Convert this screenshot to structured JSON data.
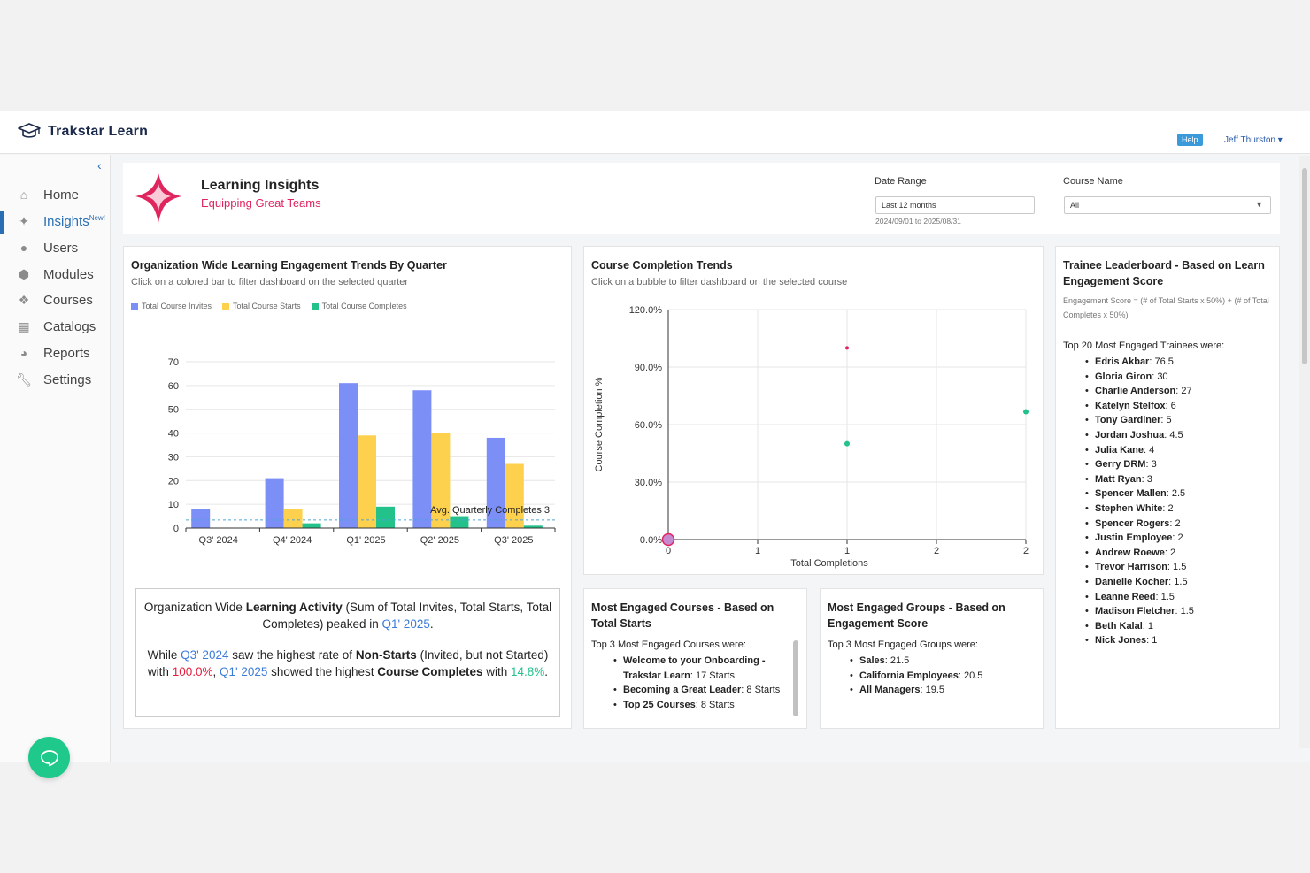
{
  "app": {
    "brand": "Trakstar Learn",
    "help": "Help",
    "user": "Jeff Thurston"
  },
  "nav": [
    {
      "label": "Home",
      "icon": "home-icon"
    },
    {
      "label": "Insights",
      "icon": "insights-icon",
      "badge": "New!",
      "active": true
    },
    {
      "label": "Users",
      "icon": "user-icon"
    },
    {
      "label": "Modules",
      "icon": "cube-icon"
    },
    {
      "label": "Courses",
      "icon": "courses-icon"
    },
    {
      "label": "Catalogs",
      "icon": "grid-icon"
    },
    {
      "label": "Reports",
      "icon": "pie-icon"
    },
    {
      "label": "Settings",
      "icon": "wrench-icon"
    }
  ],
  "header": {
    "title": "Learning Insights",
    "subtitle": "Equipping Great Teams",
    "date_range_label": "Date Range",
    "date_range_value": "Last 12 months",
    "date_range_hint": "2024/09/01 to 2025/08/31",
    "course_label": "Course Name",
    "course_value": "All"
  },
  "trends": {
    "title": "Organization Wide Learning Engagement Trends By Quarter",
    "subtitle": "Click on a colored bar to filter dashboard on the selected quarter",
    "avg_label": "Avg. Quarterly Completes 3"
  },
  "completion": {
    "title": "Course Completion Trends",
    "subtitle": "Click on a bubble to filter dashboard on the selected course"
  },
  "leaderboard": {
    "title": "Trainee Leaderboard  - Based on Learn Engagement Score",
    "formula": "Engagement Score = (# of Total Starts x 50%) + (# of Total Completes x 50%)",
    "intro": "Top 20 Most Engaged Trainees were:",
    "items": [
      {
        "name": "Edris Akbar",
        "score": "76.5"
      },
      {
        "name": "Gloria Giron",
        "score": "30"
      },
      {
        "name": "Charlie Anderson",
        "score": "27"
      },
      {
        "name": "Katelyn Stelfox",
        "score": "6"
      },
      {
        "name": "Tony Gardiner",
        "score": "5"
      },
      {
        "name": "Jordan Joshua",
        "score": "4.5"
      },
      {
        "name": "Julia Kane",
        "score": "4"
      },
      {
        "name": "Gerry DRM",
        "score": "3"
      },
      {
        "name": "Matt Ryan",
        "score": "3"
      },
      {
        "name": "Spencer Mallen",
        "score": "2.5"
      },
      {
        "name": "Stephen White",
        "score": "2"
      },
      {
        "name": "Spencer Rogers",
        "score": "2"
      },
      {
        "name": "Justin Employee",
        "score": "2"
      },
      {
        "name": "Andrew Roewe",
        "score": "2"
      },
      {
        "name": "Trevor Harrison",
        "score": "1.5"
      },
      {
        "name": "Danielle Kocher",
        "score": "1.5"
      },
      {
        "name": "Leanne Reed",
        "score": "1.5"
      },
      {
        "name": "Madison Fletcher",
        "score": "1.5"
      },
      {
        "name": "Beth Kalal",
        "score": "1"
      },
      {
        "name": "Nick Jones",
        "score": "1"
      }
    ]
  },
  "summary": {
    "p1_a": "Organization Wide ",
    "p1_b": "Learning Activity",
    "p1_c": " (Sum of Total Invites, Total Starts, Total Completes) peaked in ",
    "p1_d": "Q1' 2025",
    "p1_e": ".",
    "p2_a": "While ",
    "p2_b": "Q3' 2024",
    "p2_c": " saw the highest rate of ",
    "p2_d": "Non-Starts",
    "p2_e": " (Invited, but not Started) with ",
    "p2_f": "100.0%",
    "p2_g": ", ",
    "p2_h": "Q1' 2025",
    "p2_i": " showed the highest ",
    "p2_j": "Course Completes",
    "p2_k": " with ",
    "p2_l": "14.8%",
    "p2_m": "."
  },
  "courses": {
    "title": "Most Engaged Courses - Based on Total Starts",
    "intro": "Top 3 Most Engaged Courses were:",
    "items": [
      {
        "name": "Welcome to your Onboarding - Trakstar Learn",
        "value": "17 Starts"
      },
      {
        "name": "Becoming a Great Leader",
        "value": "8 Starts"
      },
      {
        "name": "Top 25 Courses",
        "value": "8 Starts"
      }
    ]
  },
  "groups": {
    "title": "Most Engaged Groups - Based on Engagement Score",
    "intro": "Top 3 Most Engaged Groups were:",
    "items": [
      {
        "name": "Sales",
        "value": "21.5"
      },
      {
        "name": "California Employees",
        "value": "20.5"
      },
      {
        "name": "All Managers",
        "value": "19.5"
      }
    ]
  },
  "chart_data": [
    {
      "type": "bar",
      "title": "Organization Wide Learning Engagement Trends By Quarter",
      "categories": [
        "Q3' 2024",
        "Q4' 2024",
        "Q1' 2025",
        "Q2' 2025",
        "Q3' 2025"
      ],
      "series": [
        {
          "name": "Total Course Invites",
          "color": "#7b8ff7",
          "values": [
            8,
            21,
            61,
            58,
            38
          ]
        },
        {
          "name": "Total Course Starts",
          "color": "#fdd14d",
          "values": [
            0,
            8,
            39,
            40,
            27
          ]
        },
        {
          "name": "Total Course Completes",
          "color": "#22c28a",
          "values": [
            0,
            2,
            9,
            5,
            1
          ]
        }
      ],
      "ylim": [
        0,
        70
      ],
      "yticks": [
        0,
        10,
        20,
        30,
        40,
        50,
        60,
        70
      ],
      "reference_line": {
        "label": "Avg. Quarterly Completes 3",
        "value": 3.4
      },
      "grid": true,
      "legend": "top-left"
    },
    {
      "type": "scatter",
      "title": "Course Completion Trends",
      "xlabel": "Total Completions",
      "ylabel": "Course Completion %",
      "xticks": [
        "0",
        "1",
        "1",
        "2",
        "2"
      ],
      "yticks": [
        "0.0%",
        "30.0%",
        "60.0%",
        "90.0%",
        "120.0%"
      ],
      "xlim": [
        0,
        2
      ],
      "ylim": [
        0,
        120
      ],
      "points": [
        {
          "x": 0,
          "y": 0,
          "color": "#e0245e",
          "size": "large"
        },
        {
          "x": 1,
          "y": 100,
          "color": "#e0245e",
          "size": "small"
        },
        {
          "x": 1,
          "y": 50,
          "color": "#22c28a",
          "size": "small"
        },
        {
          "x": 2,
          "y": 66.7,
          "color": "#22c28a",
          "size": "small"
        }
      ],
      "grid": true
    }
  ]
}
